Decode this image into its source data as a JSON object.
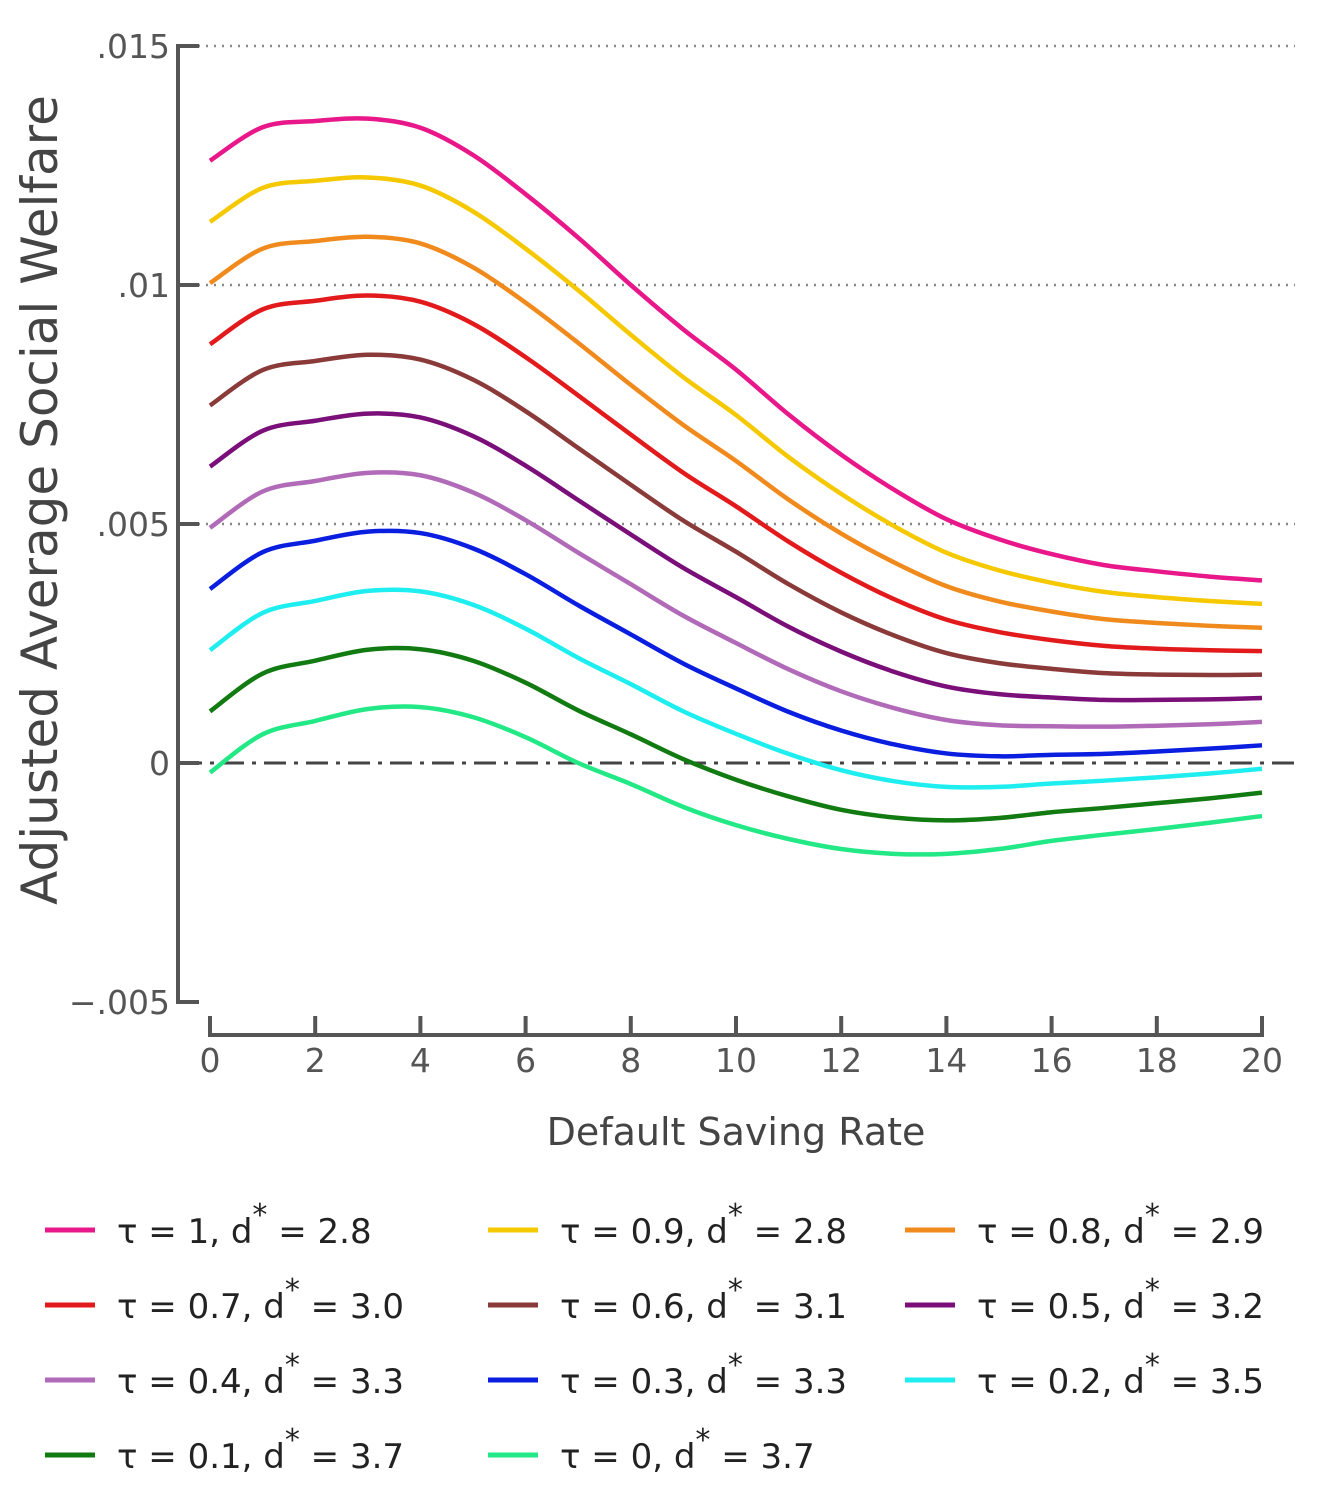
{
  "chart_data": {
    "type": "line",
    "xlabel": "Default Saving Rate",
    "ylabel": "Adjusted Average Social Welfare",
    "xlim": [
      0,
      20
    ],
    "ylim": [
      -0.005,
      0.015
    ],
    "x_ticks": [
      "0",
      "2",
      "4",
      "6",
      "8",
      "10",
      "12",
      "14",
      "16",
      "18",
      "20"
    ],
    "x_tick_values": [
      0,
      2,
      4,
      6,
      8,
      10,
      12,
      14,
      16,
      18,
      20
    ],
    "y_ticks": [
      ".015",
      ".01",
      ".005",
      "0",
      "−.005"
    ],
    "y_tick_values": [
      0.015,
      0.01,
      0.005,
      0,
      -0.005
    ],
    "grid": "horizontal dotted at .005, .01, .015",
    "reference_line": {
      "y": 0,
      "style": "dash-dot"
    },
    "legend_placement": "bottom",
    "x": [
      0,
      1,
      2,
      3,
      4,
      5,
      6,
      7,
      8,
      9,
      10,
      11,
      12,
      13,
      14,
      15,
      16,
      17,
      18,
      19,
      20
    ],
    "series": [
      {
        "tau": "1",
        "dstar": "2.8",
        "color": "#e8178a",
        "values": [
          0.0126,
          0.0133,
          0.01343,
          0.01348,
          0.01329,
          0.01272,
          0.0119,
          0.01099,
          0.01,
          0.00907,
          0.00823,
          0.00729,
          0.00645,
          0.00572,
          0.0051,
          0.00468,
          0.00437,
          0.00414,
          0.00401,
          0.0039,
          0.00382
        ]
      },
      {
        "tau": "0.9",
        "dstar": "2.8",
        "color": "#f5c800",
        "values": [
          0.01132,
          0.01203,
          0.01218,
          0.01225,
          0.01208,
          0.01154,
          0.01076,
          0.00989,
          0.00896,
          0.00807,
          0.00728,
          0.0064,
          0.00563,
          0.00496,
          0.0044,
          0.00403,
          0.00377,
          0.00358,
          0.00347,
          0.00339,
          0.00333
        ]
      },
      {
        "tau": "0.8",
        "dstar": "2.9",
        "color": "#f08a1c",
        "values": [
          0.01004,
          0.01076,
          0.01092,
          0.01101,
          0.01087,
          0.01037,
          0.00963,
          0.00879,
          0.00791,
          0.00707,
          0.00632,
          0.00551,
          0.0048,
          0.0042,
          0.0037,
          0.00338,
          0.00317,
          0.00301,
          0.00293,
          0.00287,
          0.00283
        ]
      },
      {
        "tau": "0.7",
        "dstar": "3.0",
        "color": "#e31a1c",
        "values": [
          0.00876,
          0.00949,
          0.00967,
          0.00978,
          0.00965,
          0.00919,
          0.00849,
          0.00769,
          0.00687,
          0.00607,
          0.00537,
          0.00463,
          0.00398,
          0.00343,
          0.003,
          0.00274,
          0.00257,
          0.00245,
          0.00239,
          0.00236,
          0.00234
        ]
      },
      {
        "tau": "0.6",
        "dstar": "3.1",
        "color": "#8b3a3a",
        "values": [
          0.00748,
          0.00822,
          0.00841,
          0.00854,
          0.00844,
          0.00802,
          0.00736,
          0.00659,
          0.00582,
          0.00507,
          0.00442,
          0.00374,
          0.00315,
          0.00267,
          0.0023,
          0.00209,
          0.00197,
          0.00188,
          0.00185,
          0.00184,
          0.00185
        ]
      },
      {
        "tau": "0.5",
        "dstar": "3.2",
        "color": "#7a0f7a",
        "values": [
          0.0062,
          0.00695,
          0.00716,
          0.00731,
          0.00723,
          0.00684,
          0.00622,
          0.0055,
          0.00478,
          0.00408,
          0.00347,
          0.00285,
          0.00233,
          0.00191,
          0.0016,
          0.00144,
          0.00137,
          0.00132,
          0.00132,
          0.00133,
          0.00136
        ]
      },
      {
        "tau": "0.4",
        "dstar": "3.3",
        "color": "#b06ab8",
        "values": [
          0.00492,
          0.00568,
          0.0059,
          0.00607,
          0.00602,
          0.00566,
          0.00508,
          0.0044,
          0.00374,
          0.00308,
          0.00251,
          0.00196,
          0.0015,
          0.00115,
          0.0009,
          0.00079,
          0.00077,
          0.00076,
          0.00078,
          0.00081,
          0.00086
        ]
      },
      {
        "tau": "0.3",
        "dstar": "3.3",
        "color": "#0a1ee0",
        "values": [
          0.00364,
          0.00441,
          0.00465,
          0.00484,
          0.00481,
          0.00449,
          0.00395,
          0.0033,
          0.00269,
          0.00208,
          0.00156,
          0.00107,
          0.00068,
          0.00039,
          0.0002,
          0.00014,
          0.00017,
          0.00019,
          0.00024,
          0.0003,
          0.00037
        ]
      },
      {
        "tau": "0.2",
        "dstar": "3.5",
        "color": "#1eeef0",
        "values": [
          0.00236,
          0.00314,
          0.00339,
          0.0036,
          0.00359,
          0.00331,
          0.00281,
          0.0022,
          0.00165,
          0.00108,
          0.00061,
          0.00019,
          -0.00015,
          -0.00038,
          -0.0005,
          -0.0005,
          -0.00043,
          -0.00037,
          -0.0003,
          -0.00022,
          -0.00012
        ]
      },
      {
        "tau": "0.1",
        "dstar": "3.7",
        "color": "#117a11",
        "values": [
          0.00108,
          0.00187,
          0.00214,
          0.00237,
          0.00238,
          0.00214,
          0.00168,
          0.0011,
          0.0006,
          8e-05,
          -0.00035,
          -0.0007,
          -0.00098,
          -0.00114,
          -0.0012,
          -0.00115,
          -0.00103,
          -0.00094,
          -0.00084,
          -0.00074,
          -0.00062
        ]
      },
      {
        "tau": "0",
        "dstar": "3.7",
        "color": "#22e885",
        "values": [
          -0.0002,
          0.0006,
          0.00088,
          0.00113,
          0.00117,
          0.00096,
          0.00054,
          0.0,
          -0.00044,
          -0.00092,
          -0.0013,
          -0.00159,
          -0.0018,
          -0.0019,
          -0.0019,
          -0.0018,
          -0.00163,
          -0.0015,
          -0.00138,
          -0.00125,
          -0.00111
        ]
      }
    ],
    "legend_text": {
      "tau_symbol": "τ",
      "eq": " = ",
      "sep": ", d",
      "star": "*"
    }
  }
}
